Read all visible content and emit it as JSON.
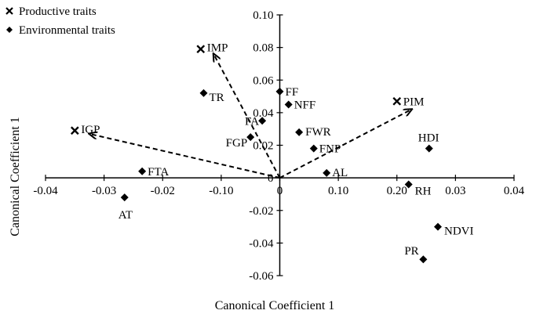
{
  "chart_data": {
    "type": "scatter",
    "xlabel": "Canonical Coefficient 1",
    "ylabel": "Canonical Coefficient 1",
    "xlim": [
      -0.04,
      0.04
    ],
    "ylim": [
      -0.06,
      0.1
    ],
    "x_ticks": [
      "-0.04",
      "-0.03",
      "-0.02",
      "-0.10",
      "0",
      "0.10",
      "0.20",
      "0.03",
      "0.04"
    ],
    "y_ticks": [
      "0.10",
      "0.08",
      "0.06",
      "0.04",
      "0.02",
      "0",
      "-0.02",
      "-0.04",
      "-0.06"
    ],
    "grid": false,
    "legend_position": "top-left",
    "series": [
      {
        "name": "Productive traits",
        "marker": "cross",
        "points": [
          {
            "label": "IMP",
            "x": -0.0135,
            "y": 0.079
          },
          {
            "label": "IGP",
            "x": -0.035,
            "y": 0.029
          },
          {
            "label": "PIM",
            "x": 0.02,
            "y": 0.047
          }
        ]
      },
      {
        "name": "Environmental traits",
        "marker": "diamond",
        "points": [
          {
            "label": "TR",
            "x": -0.013,
            "y": 0.052
          },
          {
            "label": "FF",
            "x": 0.0,
            "y": 0.053
          },
          {
            "label": "NFF",
            "x": 0.0015,
            "y": 0.045
          },
          {
            "label": "FA",
            "x": -0.003,
            "y": 0.035
          },
          {
            "label": "FWR",
            "x": 0.0033,
            "y": 0.028
          },
          {
            "label": "FGP",
            "x": -0.005,
            "y": 0.025
          },
          {
            "label": "FNP",
            "x": 0.0058,
            "y": 0.018
          },
          {
            "label": "HDI",
            "x": 0.0255,
            "y": 0.018
          },
          {
            "label": "FTA",
            "x": -0.0235,
            "y": 0.004
          },
          {
            "label": "AL",
            "x": 0.008,
            "y": 0.003
          },
          {
            "label": "AT",
            "x": -0.0265,
            "y": -0.012
          },
          {
            "label": "RH",
            "x": 0.022,
            "y": -0.004
          },
          {
            "label": "NDVI",
            "x": 0.027,
            "y": -0.03
          },
          {
            "label": "PR",
            "x": 0.0245,
            "y": -0.05
          }
        ]
      }
    ],
    "vectors": [
      {
        "label": "IMP",
        "x": -0.0113,
        "y": 0.076
      },
      {
        "label": "IGP",
        "x": -0.0325,
        "y": 0.027
      },
      {
        "label": "PIM",
        "x": 0.0225,
        "y": 0.042
      }
    ]
  }
}
